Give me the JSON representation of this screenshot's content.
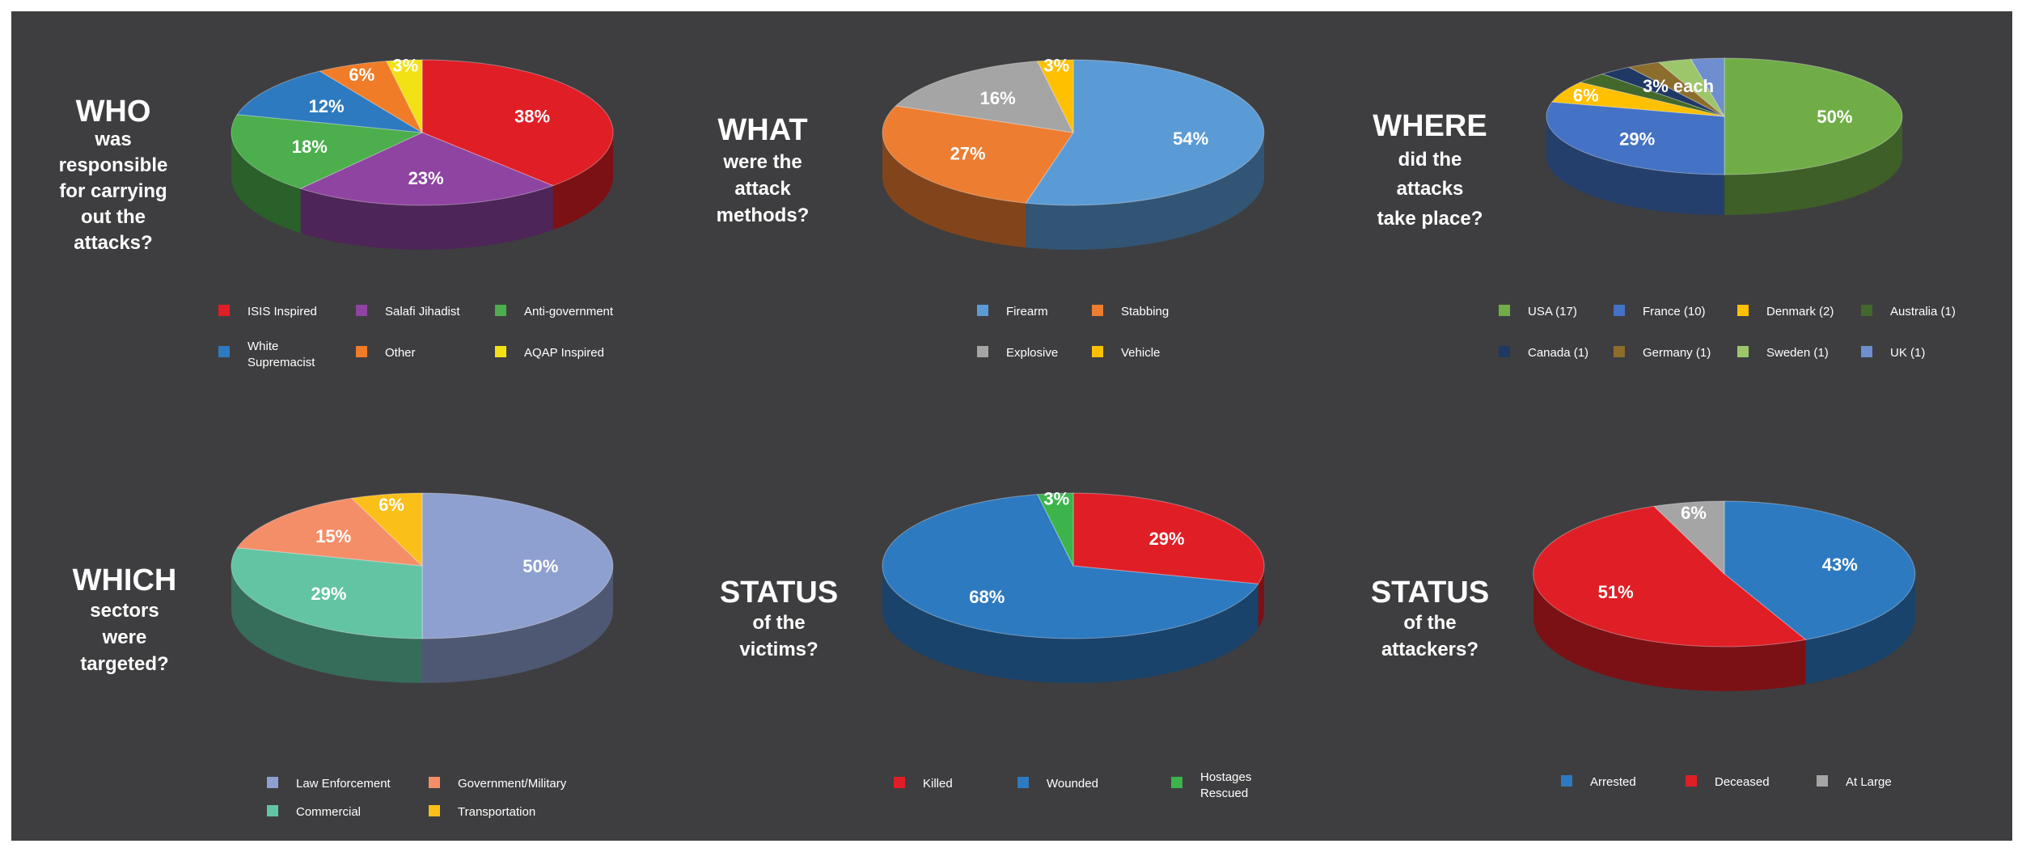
{
  "chart_data": [
    {
      "type": "pie",
      "title": "WHO",
      "subtitle_lines": [
        "was",
        "responsible",
        "for carrying",
        "out the",
        "attacks?"
      ],
      "slices": [
        {
          "label": "ISIS Inspired",
          "value": 38,
          "value_label": "38%",
          "color": "#e01e26"
        },
        {
          "label": "Salafi Jihadist",
          "value": 23,
          "value_label": "23%",
          "color": "#8e44a0"
        },
        {
          "label": "Anti-government",
          "value": 18,
          "value_label": "18%",
          "color": "#4cae4c"
        },
        {
          "label": "White Supremacist",
          "value": 12,
          "value_label": "12%",
          "color": "#2e7ac0"
        },
        {
          "label": "Other",
          "value": 6,
          "value_label": "6%",
          "color": "#f07c27"
        },
        {
          "label": "AQAP Inspired",
          "value": 3,
          "value_label": "3%",
          "color": "#f2e215"
        }
      ],
      "legend": [
        {
          "label": "ISIS Inspired",
          "color": "#e01e26"
        },
        {
          "label": "Salafi Jihadist",
          "color": "#8e44a0"
        },
        {
          "label": "Anti-government",
          "color": "#4cae4c"
        },
        {
          "label": "White Supremacist",
          "color": "#2e7ac0"
        },
        {
          "label": "Other",
          "color": "#f07c27"
        },
        {
          "label": "AQAP Inspired",
          "color": "#f2e215"
        }
      ]
    },
    {
      "type": "pie",
      "title": "WHAT",
      "subtitle_lines": [
        "were the",
        "attack",
        "methods?"
      ],
      "slices": [
        {
          "label": "Firearm",
          "value": 54,
          "value_label": "54%",
          "color": "#5b9bd5"
        },
        {
          "label": "Stabbing",
          "value": 27,
          "value_label": "27%",
          "color": "#ed7d31"
        },
        {
          "label": "Explosive",
          "value": 16,
          "value_label": "16%",
          "color": "#a5a5a5"
        },
        {
          "label": "Vehicle",
          "value": 3,
          "value_label": "3%",
          "color": "#ffc000"
        }
      ],
      "legend": [
        {
          "label": "Firearm",
          "color": "#5b9bd5"
        },
        {
          "label": "Stabbing",
          "color": "#ed7d31"
        },
        {
          "label": "Explosive",
          "color": "#a5a5a5"
        },
        {
          "label": "Vehicle",
          "color": "#ffc000"
        }
      ]
    },
    {
      "type": "pie",
      "title": "WHERE",
      "subtitle_lines": [
        "did the",
        "attacks",
        "take place?"
      ],
      "extra_label": "3% each",
      "slices": [
        {
          "label": "USA (17)",
          "value": 50,
          "value_label": "50%",
          "color": "#70ad47"
        },
        {
          "label": "France (10)",
          "value": 29,
          "value_label": "29%",
          "color": "#4472c4"
        },
        {
          "label": "Denmark (2)",
          "value": 6,
          "value_label": "6%",
          "color": "#ffc000"
        },
        {
          "label": "Australia (1)",
          "value": 3,
          "value_label": "",
          "color": "#43682b"
        },
        {
          "label": "Canada (1)",
          "value": 3,
          "value_label": "",
          "color": "#203864"
        },
        {
          "label": "Germany (1)",
          "value": 3,
          "value_label": "",
          "color": "#8c6d2c"
        },
        {
          "label": "Sweden (1)",
          "value": 3,
          "value_label": "",
          "color": "#9dc66b"
        },
        {
          "label": "UK (1)",
          "value": 3,
          "value_label": "",
          "color": "#6f8ecf"
        }
      ],
      "legend": [
        {
          "label": "USA (17)",
          "color": "#70ad47"
        },
        {
          "label": "France (10)",
          "color": "#4472c4"
        },
        {
          "label": "Denmark (2)",
          "color": "#ffc000"
        },
        {
          "label": "Australia (1)",
          "color": "#43682b"
        },
        {
          "label": "Canada (1)",
          "color": "#203864"
        },
        {
          "label": "Germany (1)",
          "color": "#8c6d2c"
        },
        {
          "label": "Sweden (1)",
          "color": "#9dc66b"
        },
        {
          "label": "UK (1)",
          "color": "#6f8ecf"
        }
      ]
    },
    {
      "type": "pie",
      "title": "WHICH",
      "subtitle_lines": [
        "sectors",
        "were",
        "targeted?"
      ],
      "slices": [
        {
          "label": "Law Enforcement",
          "value": 50,
          "value_label": "50%",
          "color": "#8ea0cf"
        },
        {
          "label": "Commercial",
          "value": 29,
          "value_label": "29%",
          "color": "#63c4a4"
        },
        {
          "label": "Government/Military",
          "value": 15,
          "value_label": "15%",
          "color": "#f48e69"
        },
        {
          "label": "Transportation",
          "value": 6,
          "value_label": "6%",
          "color": "#fbbf1a"
        }
      ],
      "legend": [
        {
          "label": "Law Enforcement",
          "color": "#8ea0cf"
        },
        {
          "label": "Government/Military",
          "color": "#f48e69"
        },
        {
          "label": "Commercial",
          "color": "#63c4a4"
        },
        {
          "label": "Transportation",
          "color": "#fbbf1a"
        }
      ]
    },
    {
      "type": "pie",
      "title": "STATUS",
      "subtitle_lines": [
        "of the",
        "victims?"
      ],
      "slices": [
        {
          "label": "Killed",
          "value": 29,
          "value_label": "29%",
          "color": "#e01e26"
        },
        {
          "label": "Wounded",
          "value": 68,
          "value_label": "68%",
          "color": "#2e7ac0"
        },
        {
          "label": "Hostages Rescued",
          "value": 3,
          "value_label": "3%",
          "color": "#3cb44b"
        }
      ],
      "legend": [
        {
          "label": "Killed",
          "color": "#e01e26"
        },
        {
          "label": "Wounded",
          "color": "#2e7ac0"
        },
        {
          "label": "Hostages Rescued",
          "color": "#3cb44b"
        }
      ]
    },
    {
      "type": "pie",
      "title": "STATUS",
      "subtitle_lines": [
        "of the",
        "attackers?"
      ],
      "slices": [
        {
          "label": "Arrested",
          "value": 43,
          "value_label": "43%",
          "color": "#2e7ac0"
        },
        {
          "label": "Deceased",
          "value": 51,
          "value_label": "51%",
          "color": "#e01e26"
        },
        {
          "label": "At Large",
          "value": 6,
          "value_label": "6%",
          "color": "#a5a5a5"
        }
      ],
      "legend": [
        {
          "label": "Arrested",
          "color": "#2e7ac0"
        },
        {
          "label": "Deceased",
          "color": "#e01e26"
        },
        {
          "label": "At Large",
          "color": "#a5a5a5"
        }
      ]
    }
  ]
}
